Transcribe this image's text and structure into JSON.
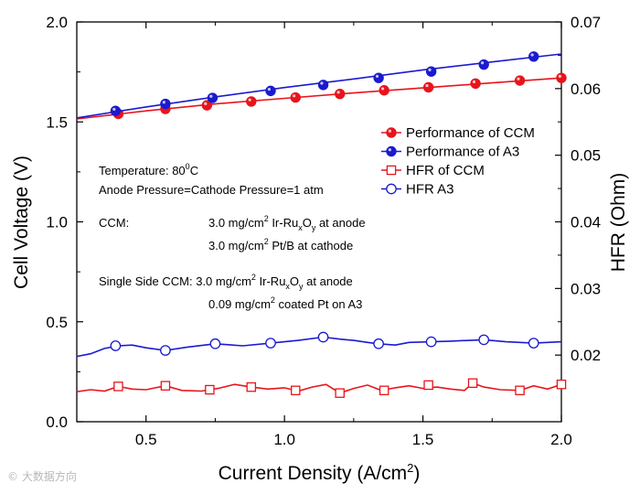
{
  "chart_data": {
    "type": "line",
    "title": "",
    "xlabel": "Current Density (A/cm2)",
    "ylabel": "Cell Voltage (V)",
    "y2label": "HFR (Ohm)",
    "xlim": [
      0.25,
      2.0
    ],
    "ylim": [
      0.0,
      2.0
    ],
    "y2lim": [
      0.01,
      0.07
    ],
    "xticks": [
      "0.5",
      "1.0",
      "1.5",
      "2.0"
    ],
    "yticks": [
      "0.0",
      "0.5",
      "1.0",
      "1.5",
      "2.0"
    ],
    "y2ticks": [
      "0.02",
      "0.03",
      "0.04",
      "0.05",
      "0.06",
      "0.07"
    ],
    "xtick_values": [
      0.5,
      1.0,
      1.5,
      2.0
    ],
    "ytick_values": [
      0.0,
      0.5,
      1.0,
      1.5,
      2.0
    ],
    "y2tick_values": [
      0.02,
      0.03,
      0.04,
      0.05,
      0.06,
      0.07
    ],
    "series": [
      {
        "name": "Performance of CCM",
        "axis": "left",
        "marker": "circle-filled",
        "color": "#e8141c",
        "line": [
          [
            0.25,
            1.515
          ],
          [
            0.5,
            1.555
          ],
          [
            0.75,
            1.59
          ],
          [
            1.0,
            1.618
          ],
          [
            1.25,
            1.645
          ],
          [
            1.5,
            1.67
          ],
          [
            1.75,
            1.695
          ],
          [
            2.0,
            1.72
          ]
        ],
        "points": [
          [
            0.4,
            1.54
          ],
          [
            0.57,
            1.565
          ],
          [
            0.72,
            1.583
          ],
          [
            0.88,
            1.602
          ],
          [
            1.04,
            1.622
          ],
          [
            1.2,
            1.64
          ],
          [
            1.36,
            1.658
          ],
          [
            1.52,
            1.673
          ],
          [
            1.69,
            1.692
          ],
          [
            1.85,
            1.707
          ],
          [
            2.0,
            1.72
          ]
        ]
      },
      {
        "name": "Performance of A3",
        "axis": "left",
        "marker": "circle-filled",
        "color": "#1a1ad0",
        "line": [
          [
            0.25,
            1.52
          ],
          [
            0.5,
            1.575
          ],
          [
            0.75,
            1.625
          ],
          [
            1.0,
            1.672
          ],
          [
            1.25,
            1.715
          ],
          [
            1.5,
            1.76
          ],
          [
            1.75,
            1.8
          ],
          [
            2.0,
            1.84
          ]
        ],
        "points": [
          [
            0.39,
            1.555
          ],
          [
            0.57,
            1.59
          ],
          [
            0.74,
            1.62
          ],
          [
            0.95,
            1.655
          ],
          [
            1.14,
            1.685
          ],
          [
            1.34,
            1.72
          ],
          [
            1.53,
            1.752
          ],
          [
            1.72,
            1.787
          ],
          [
            1.9,
            1.827
          ]
        ]
      },
      {
        "name": "HFR of CCM",
        "axis": "right",
        "marker": "square-open",
        "color": "#e8141c",
        "line": [
          [
            0.25,
            0.0145
          ],
          [
            0.3,
            0.0148
          ],
          [
            0.35,
            0.0146
          ],
          [
            0.4,
            0.0153
          ],
          [
            0.45,
            0.0149
          ],
          [
            0.5,
            0.0148
          ],
          [
            0.57,
            0.0154
          ],
          [
            0.63,
            0.0147
          ],
          [
            0.7,
            0.0146
          ],
          [
            0.76,
            0.015
          ],
          [
            0.82,
            0.0156
          ],
          [
            0.88,
            0.0152
          ],
          [
            0.94,
            0.0149
          ],
          [
            1.0,
            0.0151
          ],
          [
            1.05,
            0.0146
          ],
          [
            1.1,
            0.0152
          ],
          [
            1.15,
            0.0156
          ],
          [
            1.2,
            0.0143
          ],
          [
            1.25,
            0.015
          ],
          [
            1.3,
            0.0155
          ],
          [
            1.35,
            0.0147
          ],
          [
            1.4,
            0.0151
          ],
          [
            1.45,
            0.0154
          ],
          [
            1.5,
            0.015
          ],
          [
            1.55,
            0.0152
          ],
          [
            1.6,
            0.0149
          ],
          [
            1.65,
            0.0147
          ],
          [
            1.68,
            0.0158
          ],
          [
            1.72,
            0.0152
          ],
          [
            1.78,
            0.0148
          ],
          [
            1.85,
            0.0147
          ],
          [
            1.9,
            0.0154
          ],
          [
            1.95,
            0.0149
          ],
          [
            2.0,
            0.0156
          ]
        ],
        "points": [
          [
            0.4,
            0.0153
          ],
          [
            0.57,
            0.0154
          ],
          [
            0.73,
            0.0148
          ],
          [
            0.88,
            0.0152
          ],
          [
            1.04,
            0.0147
          ],
          [
            1.2,
            0.0143
          ],
          [
            1.36,
            0.0147
          ],
          [
            1.52,
            0.0155
          ],
          [
            1.68,
            0.0158
          ],
          [
            1.85,
            0.0147
          ],
          [
            2.0,
            0.0156
          ]
        ]
      },
      {
        "name": "HFR A3",
        "axis": "right",
        "marker": "circle-open",
        "color": "#1a1ad0",
        "line": [
          [
            0.25,
            0.0198
          ],
          [
            0.3,
            0.0202
          ],
          [
            0.35,
            0.021
          ],
          [
            0.4,
            0.0214
          ],
          [
            0.45,
            0.0215
          ],
          [
            0.5,
            0.0211
          ],
          [
            0.57,
            0.0207
          ],
          [
            0.65,
            0.0212
          ],
          [
            0.75,
            0.0217
          ],
          [
            0.85,
            0.0214
          ],
          [
            0.95,
            0.0218
          ],
          [
            1.05,
            0.0222
          ],
          [
            1.14,
            0.0227
          ],
          [
            1.2,
            0.0224
          ],
          [
            1.25,
            0.0222
          ],
          [
            1.3,
            0.0219
          ],
          [
            1.34,
            0.0217
          ],
          [
            1.4,
            0.0215
          ],
          [
            1.45,
            0.0219
          ],
          [
            1.53,
            0.022
          ],
          [
            1.6,
            0.0221
          ],
          [
            1.72,
            0.0223
          ],
          [
            1.8,
            0.022
          ],
          [
            1.9,
            0.0218
          ],
          [
            2.0,
            0.022
          ]
        ],
        "points": [
          [
            0.39,
            0.0214
          ],
          [
            0.57,
            0.0207
          ],
          [
            0.75,
            0.0217
          ],
          [
            0.95,
            0.0218
          ],
          [
            1.14,
            0.0227
          ],
          [
            1.34,
            0.0217
          ],
          [
            1.53,
            0.022
          ],
          [
            1.72,
            0.0223
          ],
          [
            1.9,
            0.0218
          ]
        ]
      }
    ],
    "legend": {
      "placement": "right-middle",
      "entries": [
        "Performance of CCM",
        "Performance of A3",
        "HFR of CCM",
        "HFR A3"
      ]
    },
    "annotations": {
      "temperature_label": "Temperature: 80",
      "temperature_sup": "0",
      "temperature_unit": "C",
      "pressure": "Anode Pressure=Cathode Pressure=1 atm",
      "ccm_label": "CCM:",
      "ccm_line1_a": "3.0 mg/cm",
      "ccm_line1_sup": "2",
      "ccm_line1_b": " Ir-Ru",
      "ccm_line1_sub1": "x",
      "ccm_line1_c": "O",
      "ccm_line1_sub2": "y",
      "ccm_line1_d": " at anode",
      "ccm_line2_a": "3.0 mg/cm",
      "ccm_line2_sup": "2",
      "ccm_line2_b": " Pt/B at cathode",
      "single_label_a": "Single Side CCM: 3.0 mg/cm",
      "single_label_sup": "2",
      "single_label_b": " Ir-Ru",
      "single_label_sub1": "x",
      "single_label_c": "O",
      "single_label_sub2": "y",
      "single_label_d": " at anode",
      "single_line2_a": "0.09 mg/cm",
      "single_line2_sup": "2",
      "single_line2_b": " coated Pt on A3"
    },
    "xlabel_parts": {
      "main": "Current Density (A/cm",
      "sup": "2",
      "close": ")"
    }
  },
  "watermark": "© 大数据方向"
}
